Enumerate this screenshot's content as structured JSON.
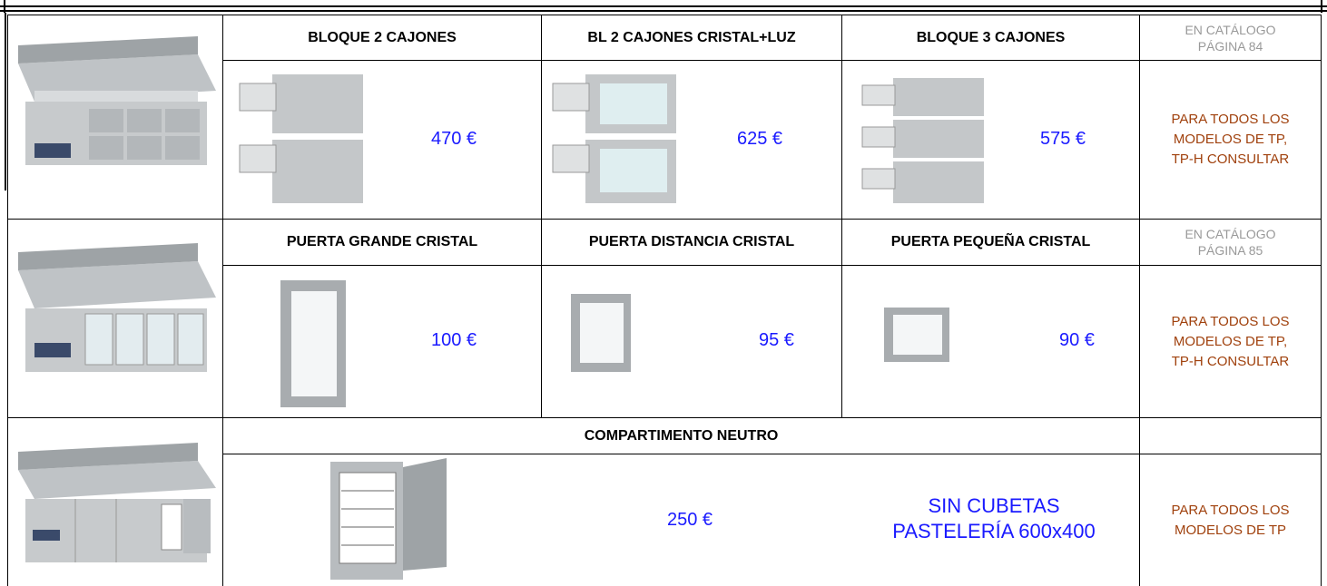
{
  "rows": [
    {
      "headers": [
        "BLOQUE 2 CAJONES",
        "BL 2 CAJONES CRISTAL+LUZ",
        "BLOQUE 3 CAJONES"
      ],
      "catalog": [
        "EN CATÁLOGO",
        "PÁGINA 84"
      ],
      "prices": [
        "470 €",
        "625 €",
        "575 €"
      ],
      "note": [
        "PARA TODOS LOS",
        "MODELOS DE TP,",
        "TP-H CONSULTAR"
      ]
    },
    {
      "headers": [
        "PUERTA GRANDE CRISTAL",
        "PUERTA DISTANCIA CRISTAL",
        "PUERTA PEQUEÑA CRISTAL"
      ],
      "catalog": [
        "EN CATÁLOGO",
        "PÁGINA 85"
      ],
      "prices": [
        "100 €",
        "95 €",
        "90 €"
      ],
      "note": [
        "PARA TODOS LOS",
        "MODELOS DE TP,",
        "TP-H CONSULTAR"
      ]
    },
    {
      "headers": [
        "COMPARTIMENTO NEUTRO"
      ],
      "prices": [
        "250 €"
      ],
      "extra": [
        "SIN CUBETAS",
        "PASTELERÍA 600x400"
      ],
      "note": [
        "PARA TODOS LOS",
        "MODELOS DE TP"
      ]
    }
  ]
}
